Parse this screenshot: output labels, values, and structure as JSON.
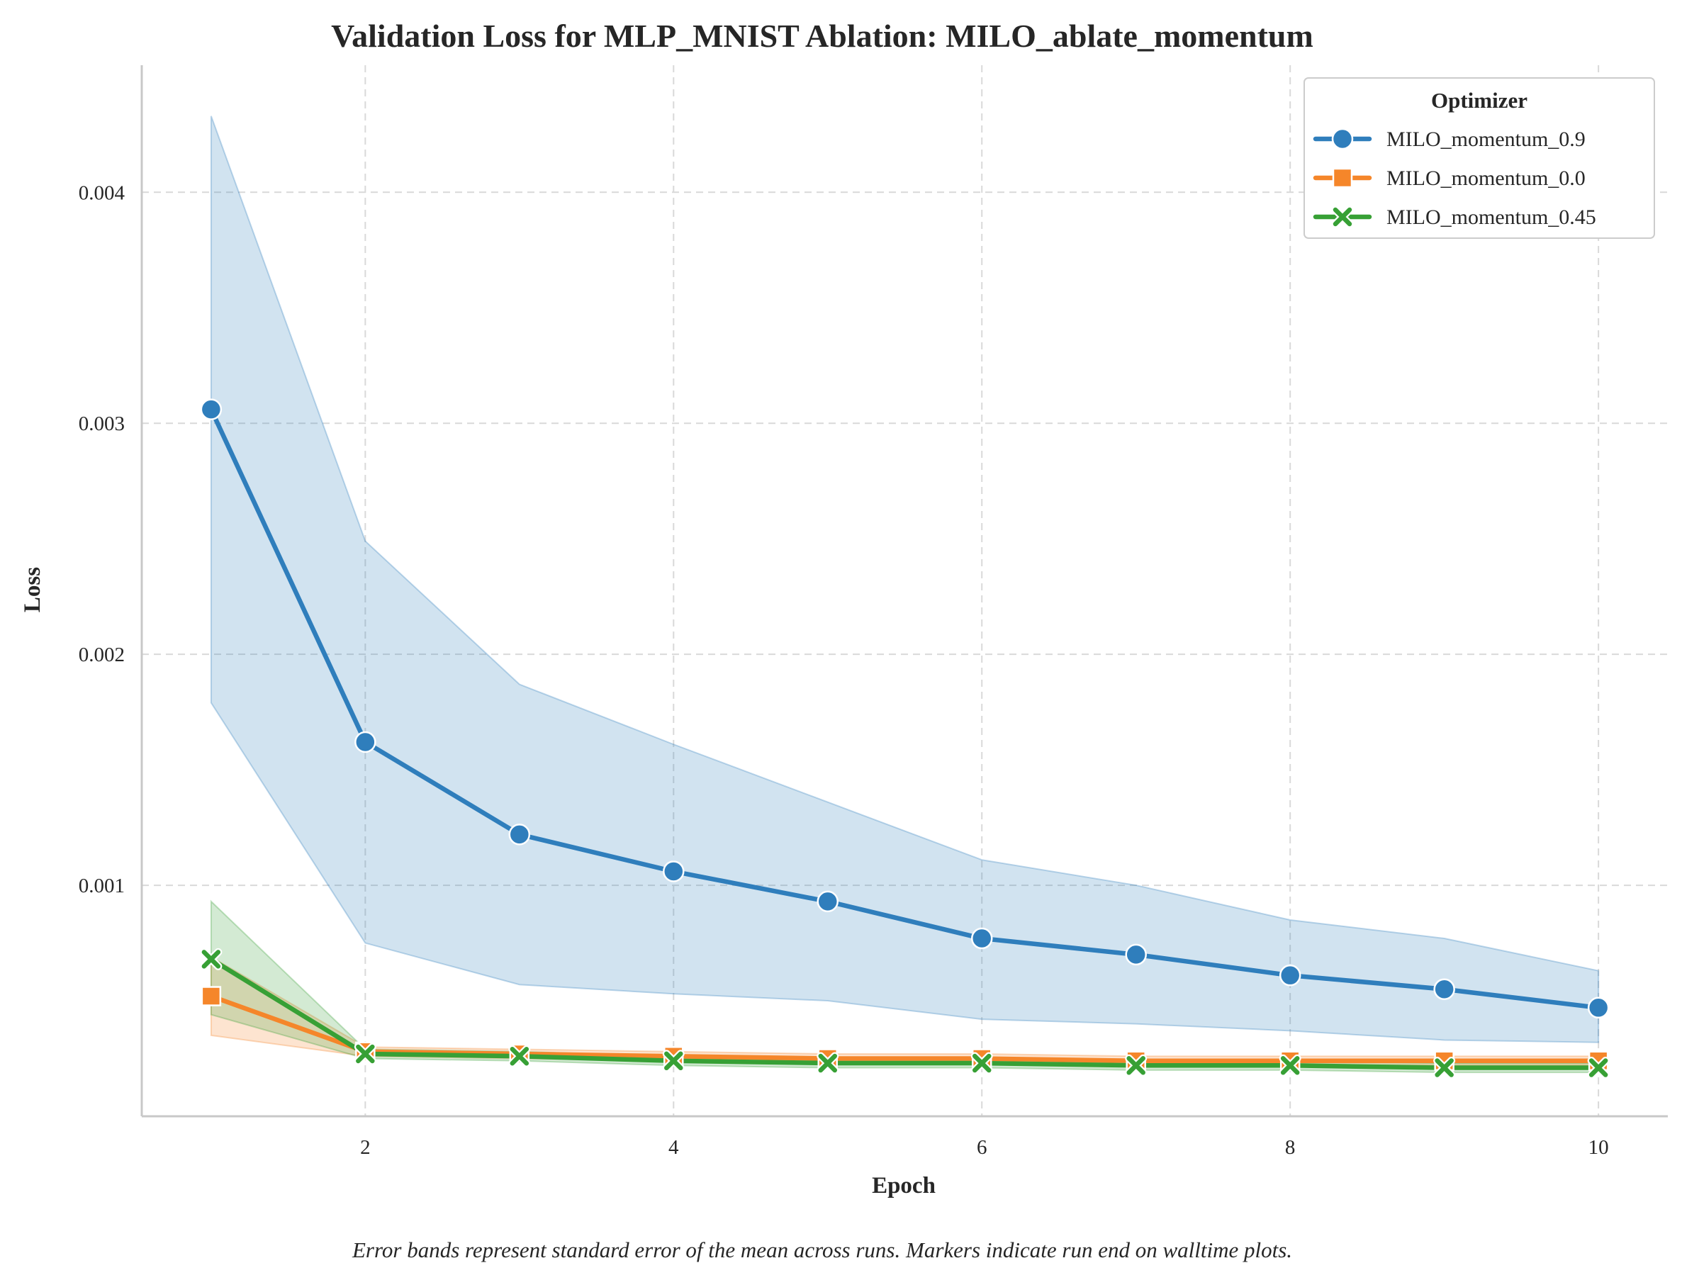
{
  "chart_data": {
    "type": "line",
    "title": "Validation Loss for MLP_MNIST Ablation: MILO_ablate_momentum",
    "xlabel": "Epoch",
    "ylabel": "Loss",
    "xlim": [
      0.55,
      10.45
    ],
    "ylim": [
      0.0,
      0.00455
    ],
    "xticks": [
      2,
      4,
      6,
      8,
      10
    ],
    "yticks": [
      0.001,
      0.002,
      0.003,
      0.004
    ],
    "xtick_labels": [
      "2",
      "4",
      "6",
      "8",
      "10"
    ],
    "ytick_labels": [
      "0.001",
      "0.002",
      "0.003",
      "0.004"
    ],
    "grid": true,
    "legend": {
      "title": "Optimizer",
      "placement": "top-right"
    },
    "caption": "Error bands represent standard error of the mean across runs. Markers indicate run end on walltime plots.",
    "x": [
      1,
      2,
      3,
      4,
      5,
      6,
      7,
      8,
      9,
      10
    ],
    "series": [
      {
        "name": "MILO_momentum_0.9",
        "color": "#2f7ebc",
        "marker": "circle",
        "values": [
          0.00306,
          0.00162,
          0.00122,
          0.00106,
          0.00093,
          0.00077,
          0.0007,
          0.00061,
          0.00055,
          0.00047
        ],
        "lower": [
          0.00179,
          0.00075,
          0.00057,
          0.00053,
          0.0005,
          0.00042,
          0.0004,
          0.00037,
          0.00033,
          0.00032
        ],
        "upper": [
          0.00433,
          0.00249,
          0.00187,
          0.00161,
          0.00136,
          0.00111,
          0.001,
          0.00085,
          0.00077,
          0.00063
        ]
      },
      {
        "name": "MILO_momentum_0.0",
        "color": "#f5862a",
        "marker": "square",
        "values": [
          0.00052,
          0.00028,
          0.00027,
          0.00026,
          0.00025,
          0.00025,
          0.00024,
          0.00024,
          0.00024,
          0.00024
        ],
        "lower": [
          0.00035,
          0.00026,
          0.00025,
          0.00024,
          0.00023,
          0.00023,
          0.00022,
          0.00022,
          0.00022,
          0.00022
        ],
        "upper": [
          0.00069,
          0.0003,
          0.00029,
          0.00028,
          0.00027,
          0.00027,
          0.00026,
          0.00026,
          0.00026,
          0.00026
        ]
      },
      {
        "name": "MILO_momentum_0.45",
        "color": "#37a035",
        "marker": "x",
        "values": [
          0.00068,
          0.00027,
          0.00026,
          0.00024,
          0.00023,
          0.00023,
          0.00022,
          0.00022,
          0.00021,
          0.00021
        ],
        "lower": [
          0.00044,
          0.00025,
          0.00024,
          0.00022,
          0.00021,
          0.00021,
          0.0002,
          0.0002,
          0.00019,
          0.00019
        ],
        "upper": [
          0.00093,
          0.00029,
          0.00028,
          0.00026,
          0.00025,
          0.00025,
          0.00024,
          0.00024,
          0.00023,
          0.00023
        ]
      }
    ]
  }
}
